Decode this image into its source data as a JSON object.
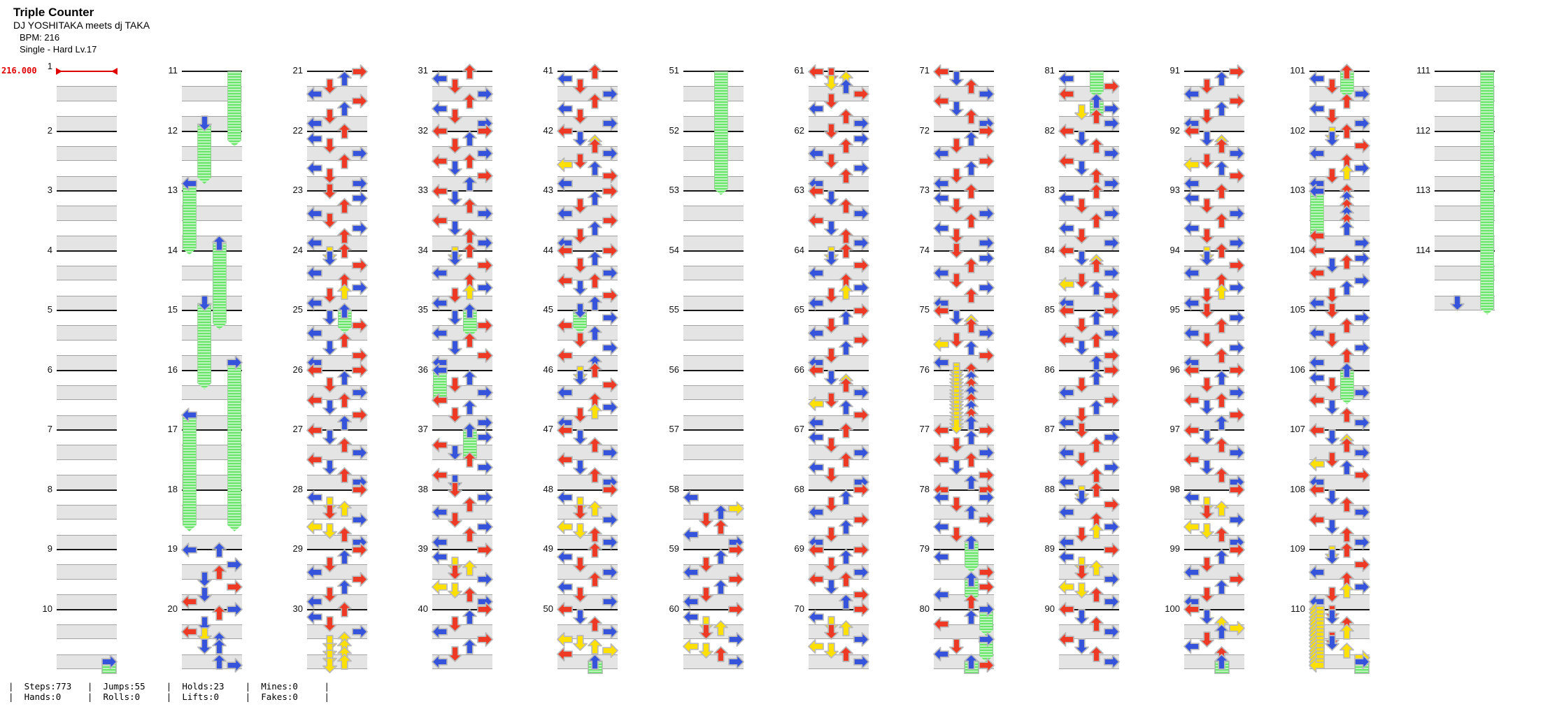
{
  "header": {
    "title": "Triple Counter",
    "artist": "DJ YOSHITAKA meets dj TAKA",
    "bpm": "BPM: 216",
    "difficulty": "Single - Hard  Lv.17"
  },
  "bpm_marker": {
    "value": "216.000",
    "measure_label": "1"
  },
  "colors": {
    "red": "#ee3a24",
    "blue": "#3653dc",
    "yellow": "#ffe000",
    "outline": "#b9b9b9",
    "hold_light": "#bdf4bd",
    "hold_dark": "#69e669",
    "hold_border": "#8fca8f",
    "band": "#e4e4e4",
    "measure_line": "#161616",
    "bpm_red": "#e00000"
  },
  "footer": {
    "stats_top": [
      "Steps:773",
      "Jumps:55",
      "Holds:23",
      "Mines:0"
    ],
    "stats_bottom": [
      "Hands:0",
      "Rolls:0",
      "Lifts:0",
      "Fakes:0"
    ]
  },
  "chart": {
    "total_measures": 114,
    "measures_per_column": 10,
    "lanes": [
      "L",
      "D",
      "U",
      "R"
    ],
    "note_colors": {
      "r": "red 4th",
      "b": "blue 8th",
      "y": "yellow 16th"
    },
    "patterns": {
      "A": "0Lr 2Db 4Ur 6Rb 8Lr 10Db 12Ur 14Rb",
      "B": "0Rr 2Ub 4Dr 6Lb 8Rr 10Ub 12Dr 14Lb",
      "C": "0Ur 2Lb 4Dr 6Rb 8Ur 10Lb 12Dr 14Rb",
      "D": "0Dr 2Rb 4Ur 6Lb 8Dr 10Rb 12Ur 14Lb",
      "E": "0Lr 2Db 3Uy 4Ur 6Rb 8Dr 9Ly 10Ub 12Rr 14Lb",
      "F": "0Ur 1Dy 2Db 4Rr 6Lb 8Ur 10Rb 11Uy 12Dr 14Lb",
      "G": "0Lr 0Rr 2Ub 4Dr 6Rb 8Lr 8Ur 10Db 12Rr 14Ub",
      "H": "0Rr 2Lb 4Dy 5Uy 6Dr 8Rb 10Ly 11Dy 12Ur 14Rb",
      "I": "0Ub 2Db 4Rr 6Lb 8Ur 10Db 12Rr 14Lb"
    },
    "measures": {
      "10": "14Rb",
      "11": "14Db",
      "12": "14Lb",
      "13": "14Ub",
      "14": "14Db",
      "15": "14Rb",
      "16": "12Lb",
      "19": "0Lb 0Ub 4Rb 6Ur 8Db 10Rr 12Db 14Lr",
      "20": "0Rb 1Ur 4Db 6Lr 7Dy 8Ub 10Db 10Ub 14Ub 15Rb",
      "21": "B",
      "22": "C",
      "23": "D",
      "24": "F",
      "25": "I",
      "26": "G",
      "27": "A",
      "28": "H",
      "29": "B",
      "30": "0Ur 2Lb 4Dr 6Rb 8Uy 9Dy 10Uy 11Dy 12Uy 13Dy 14Uy 15Dy",
      "31": "C",
      "32": "G",
      "33": "A",
      "34": "F",
      "35": "I",
      "36": "0Lb 2Ub 4Dr 6Rb 8Lr 10Ub 12Dr 14Rb",
      "37": "0Ub 2Rb 4Lr 6Db 8Ur 10Rb 12Lr 14Db",
      "38": "D",
      "39": "H",
      "40": "B",
      "41": "C",
      "42": "E",
      "43": "B",
      "44": "G",
      "45": "0Db 2Rb 4Lr 6Ub 8Dr 10Rb 12Lr 14Ub",
      "46": "F",
      "47": "A",
      "48": "H",
      "49": "C",
      "50": "0Lr 2Db 4Ur 6Rb 8Ly 9Dy 10Uy 11Ry 12Lr 14Ub",
      "58": "2Lb 5Ry 6Ub 8Dr 10Ur 12Lb 14Rb",
      "59": "B",
      "60": "H",
      "61": "0Lr 1Dr 2Uy 3Dy 4Ub 6Rr 8Dr 10Lb 12Ur 14Rb",
      "62": "D",
      "63": "A",
      "64": "F",
      "65": "B",
      "66": "E",
      "67": "C",
      "68": "B",
      "69": "G",
      "70": "H",
      "71": "A",
      "72": "B",
      "73": "C",
      "74": "D",
      "75": "E",
      "76": "0Dy 1Dy 2Dy 3Dy 4Dy 5Dy 6Dy 7Dy 8Dy 9Dy 10Dy 11Dy 12Dy 13Dy 14Dy 15Dy 0Ur 2Ub 4Ur 6Ub 8Ur 10Ub 12Ur 14Ub",
      "77": "G",
      "78": "0Lr 0Rr 2Lb 2Rb 4Dr 6Ub 8Rr 10Lb 12Dr 14Ub",
      "79": "2Lb 6Rr 8Ub 10Rr 12Lb 14Ur",
      "80": "0Rb 2Ub 4Lr 8Rb 10Dr 12Lb 14Ub 15Rr",
      "81": "2Lb 4Rr 6Lr 8Ub 10Rb 11Dy 12Ur 14Rb",
      "82": "A",
      "83": "C",
      "84": "E",
      "85": "G",
      "86": "B",
      "87": "D",
      "88": "F",
      "89": "H",
      "90": "A",
      "91": "B",
      "92": "E",
      "93": "C",
      "94": "F",
      "95": "D",
      "96": "G",
      "97": "A",
      "98": "H",
      "99": "B",
      "100": "0Lr 2Db 4Uy 5Ry 6Ub 8Dr 10Lb 12Ur 14Ub",
      "101": "C",
      "102": "F",
      "103": "0Lb 0Ur 2Ub 4Ur 6Ub 8Ur 10Ub 12Lr 14Rb",
      "104": "0Lr 2Rb 3Ur 4Db 6Lr 8Rb 10Ub 12Dr 14Lb",
      "105": "D",
      "106": "0Ub 2Lb 4Dr 6Rb 8Lr 10Db 12Ur 14Rb",
      "107": "E",
      "108": "A",
      "109": "F",
      "110": "0Ly 1Ly 2Ly 3Ly 4Ly 5Ly 6Ly 7Ly 8Ly 9Ly 10Ly 11Ly 12Ly 13Ly 14Ly 15Ly 1Dr 2Db 4Ur 6Uy 8Dr 9Db 11Uy 13Ry 14Rb",
      "114": "14Db"
    },
    "holds": [
      [
        10,
        14,
        "R",
        21
      ],
      [
        11,
        14,
        "D",
        15
      ],
      [
        12,
        14,
        "L",
        18
      ],
      [
        13,
        14,
        "U",
        22
      ],
      [
        14,
        14,
        "D",
        22
      ],
      [
        15,
        14,
        "R",
        44
      ],
      [
        16,
        12,
        "L",
        30
      ],
      [
        25,
        0,
        "U",
        5
      ],
      [
        35,
        0,
        "U",
        6
      ],
      [
        36,
        0,
        "L",
        8
      ],
      [
        37,
        0,
        "U",
        8
      ],
      [
        45,
        0,
        "D",
        5
      ],
      [
        50,
        14,
        "U",
        34
      ],
      [
        78,
        14,
        "U",
        7
      ],
      [
        79,
        8,
        "U",
        5
      ],
      [
        80,
        0,
        "R",
        6
      ],
      [
        80,
        8,
        "R",
        5
      ],
      [
        80,
        14,
        "U",
        8
      ],
      [
        81,
        8,
        "U",
        4
      ],
      [
        100,
        14,
        "U",
        8
      ],
      [
        103,
        0,
        "L",
        12
      ],
      [
        106,
        0,
        "U",
        8
      ],
      [
        110,
        14,
        "R",
        66
      ]
    ]
  }
}
